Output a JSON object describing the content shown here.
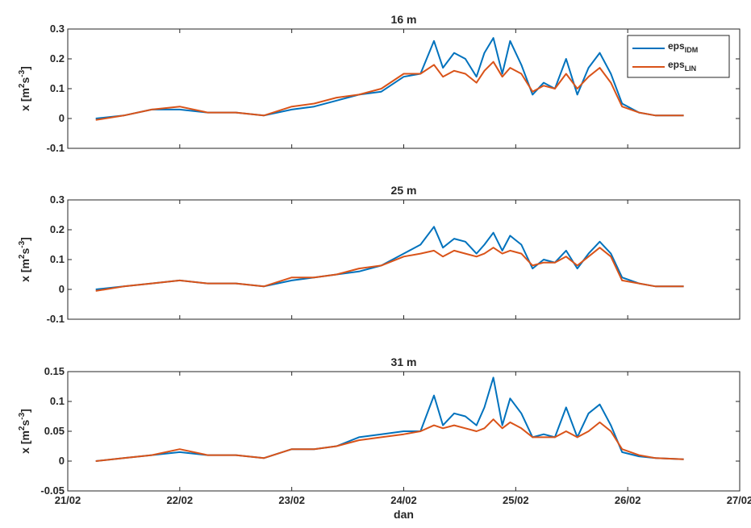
{
  "chart_data": [
    {
      "type": "line",
      "title": "16 m",
      "xlabel": "",
      "ylabel": "x [m^2s^-3]",
      "ylim": [
        -0.1,
        0.3
      ],
      "y_ticks": [
        "-0.1",
        "0",
        "0.1",
        "0.2",
        "0.3"
      ],
      "x_tick_labels_shown": false,
      "grid": false,
      "legend": {
        "placement": "top-right",
        "entries": [
          {
            "base": "eps",
            "sub": "IDM",
            "color": "#0072BD"
          },
          {
            "base": "eps",
            "sub": "LIN",
            "color": "#D95319"
          }
        ]
      },
      "series": [
        {
          "label": "epsIDM",
          "color": "#0072BD",
          "x": [
            21.25,
            21.5,
            21.75,
            22.0,
            22.25,
            22.5,
            22.75,
            23.0,
            23.2,
            23.4,
            23.6,
            23.8,
            24.0,
            24.15,
            24.27,
            24.35,
            24.45,
            24.55,
            24.65,
            24.72,
            24.8,
            24.88,
            24.95,
            25.05,
            25.15,
            25.25,
            25.35,
            25.45,
            25.55,
            25.65,
            25.75,
            25.85,
            25.95,
            26.1,
            26.25,
            26.5
          ],
          "y": [
            0.0,
            0.01,
            0.03,
            0.03,
            0.02,
            0.02,
            0.01,
            0.03,
            0.04,
            0.06,
            0.08,
            0.09,
            0.14,
            0.15,
            0.26,
            0.17,
            0.22,
            0.2,
            0.14,
            0.22,
            0.27,
            0.15,
            0.26,
            0.18,
            0.08,
            0.12,
            0.1,
            0.2,
            0.08,
            0.17,
            0.22,
            0.15,
            0.05,
            0.02,
            0.01,
            0.01
          ]
        },
        {
          "label": "epsLIN",
          "color": "#D95319",
          "x": [
            21.25,
            21.5,
            21.75,
            22.0,
            22.25,
            22.5,
            22.75,
            23.0,
            23.2,
            23.4,
            23.6,
            23.8,
            24.0,
            24.15,
            24.27,
            24.35,
            24.45,
            24.55,
            24.65,
            24.72,
            24.8,
            24.88,
            24.95,
            25.05,
            25.15,
            25.25,
            25.35,
            25.45,
            25.55,
            25.65,
            25.75,
            25.85,
            25.95,
            26.1,
            26.25,
            26.5
          ],
          "y": [
            -0.005,
            0.01,
            0.03,
            0.04,
            0.02,
            0.02,
            0.01,
            0.04,
            0.05,
            0.07,
            0.08,
            0.1,
            0.15,
            0.15,
            0.18,
            0.14,
            0.16,
            0.15,
            0.12,
            0.16,
            0.19,
            0.14,
            0.17,
            0.15,
            0.09,
            0.11,
            0.1,
            0.15,
            0.1,
            0.14,
            0.17,
            0.12,
            0.04,
            0.02,
            0.01,
            0.01
          ]
        }
      ]
    },
    {
      "type": "line",
      "title": "25 m",
      "xlabel": "",
      "ylabel": "x [m^2s^-3]",
      "ylim": [
        -0.1,
        0.3
      ],
      "y_ticks": [
        "-0.1",
        "0",
        "0.1",
        "0.2",
        "0.3"
      ],
      "x_tick_labels_shown": false,
      "grid": false,
      "series": [
        {
          "label": "epsIDM",
          "color": "#0072BD",
          "x": [
            21.25,
            21.5,
            21.75,
            22.0,
            22.25,
            22.5,
            22.75,
            23.0,
            23.2,
            23.4,
            23.6,
            23.8,
            24.0,
            24.15,
            24.27,
            24.35,
            24.45,
            24.55,
            24.65,
            24.72,
            24.8,
            24.88,
            24.95,
            25.05,
            25.15,
            25.25,
            25.35,
            25.45,
            25.55,
            25.65,
            25.75,
            25.85,
            25.95,
            26.1,
            26.25,
            26.5
          ],
          "y": [
            0.0,
            0.01,
            0.02,
            0.03,
            0.02,
            0.02,
            0.01,
            0.03,
            0.04,
            0.05,
            0.06,
            0.08,
            0.12,
            0.15,
            0.21,
            0.14,
            0.17,
            0.16,
            0.12,
            0.15,
            0.19,
            0.13,
            0.18,
            0.15,
            0.07,
            0.1,
            0.09,
            0.13,
            0.07,
            0.12,
            0.16,
            0.12,
            0.04,
            0.02,
            0.01,
            0.01
          ]
        },
        {
          "label": "epsLIN",
          "color": "#D95319",
          "x": [
            21.25,
            21.5,
            21.75,
            22.0,
            22.25,
            22.5,
            22.75,
            23.0,
            23.2,
            23.4,
            23.6,
            23.8,
            24.0,
            24.15,
            24.27,
            24.35,
            24.45,
            24.55,
            24.65,
            24.72,
            24.8,
            24.88,
            24.95,
            25.05,
            25.15,
            25.25,
            25.35,
            25.45,
            25.55,
            25.65,
            25.75,
            25.85,
            25.95,
            26.1,
            26.25,
            26.5
          ],
          "y": [
            -0.005,
            0.01,
            0.02,
            0.03,
            0.02,
            0.02,
            0.01,
            0.04,
            0.04,
            0.05,
            0.07,
            0.08,
            0.11,
            0.12,
            0.13,
            0.11,
            0.13,
            0.12,
            0.11,
            0.12,
            0.14,
            0.12,
            0.13,
            0.12,
            0.08,
            0.09,
            0.09,
            0.11,
            0.08,
            0.11,
            0.14,
            0.11,
            0.03,
            0.02,
            0.01,
            0.01
          ]
        }
      ]
    },
    {
      "type": "line",
      "title": "31 m",
      "xlabel": "dan",
      "ylabel": "x [m^2s^-3]",
      "ylim": [
        -0.05,
        0.15
      ],
      "y_ticks": [
        "-0.05",
        "0",
        "0.05",
        "0.1",
        "0.15"
      ],
      "xlim": [
        21,
        27
      ],
      "x_ticks": [
        "21/02",
        "22/02",
        "23/02",
        "24/02",
        "25/02",
        "26/02",
        "27/02"
      ],
      "x_tick_labels_shown": true,
      "grid": false,
      "series": [
        {
          "label": "epsIDM",
          "color": "#0072BD",
          "x": [
            21.25,
            21.5,
            21.75,
            22.0,
            22.25,
            22.5,
            22.75,
            23.0,
            23.2,
            23.4,
            23.6,
            23.8,
            24.0,
            24.15,
            24.27,
            24.35,
            24.45,
            24.55,
            24.65,
            24.72,
            24.8,
            24.88,
            24.95,
            25.05,
            25.15,
            25.25,
            25.35,
            25.45,
            25.55,
            25.65,
            25.75,
            25.85,
            25.95,
            26.1,
            26.25,
            26.5
          ],
          "y": [
            0.0,
            0.005,
            0.01,
            0.015,
            0.01,
            0.01,
            0.005,
            0.02,
            0.02,
            0.025,
            0.04,
            0.045,
            0.05,
            0.05,
            0.11,
            0.06,
            0.08,
            0.075,
            0.06,
            0.09,
            0.14,
            0.06,
            0.105,
            0.08,
            0.04,
            0.045,
            0.04,
            0.09,
            0.04,
            0.08,
            0.095,
            0.06,
            0.015,
            0.008,
            0.005,
            0.003
          ]
        },
        {
          "label": "epsLIN",
          "color": "#D95319",
          "x": [
            21.25,
            21.5,
            21.75,
            22.0,
            22.25,
            22.5,
            22.75,
            23.0,
            23.2,
            23.4,
            23.6,
            23.8,
            24.0,
            24.15,
            24.27,
            24.35,
            24.45,
            24.55,
            24.65,
            24.72,
            24.8,
            24.88,
            24.95,
            25.05,
            25.15,
            25.25,
            25.35,
            25.45,
            25.55,
            25.65,
            25.75,
            25.85,
            25.95,
            26.1,
            26.25,
            26.5
          ],
          "y": [
            0.0,
            0.005,
            0.01,
            0.02,
            0.01,
            0.01,
            0.005,
            0.02,
            0.02,
            0.025,
            0.035,
            0.04,
            0.045,
            0.05,
            0.06,
            0.055,
            0.06,
            0.055,
            0.05,
            0.055,
            0.07,
            0.055,
            0.065,
            0.055,
            0.04,
            0.04,
            0.04,
            0.05,
            0.04,
            0.05,
            0.065,
            0.05,
            0.02,
            0.01,
            0.005,
            0.003
          ]
        }
      ]
    }
  ]
}
